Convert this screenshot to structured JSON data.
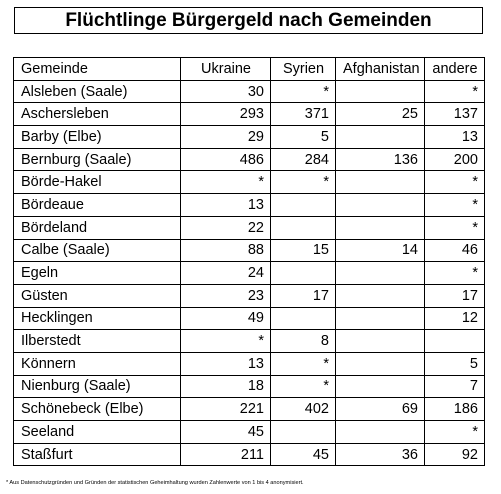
{
  "title": "Flüchtlinge Bürgergeld nach Gemeinden",
  "table": {
    "headers": [
      "Gemeinde",
      "Ukraine",
      "Syrien",
      "Afghanistan",
      "andere"
    ],
    "rows": [
      [
        "Alsleben (Saale)",
        "30",
        "*",
        "",
        "*"
      ],
      [
        "Aschersleben",
        "293",
        "371",
        "25",
        "137"
      ],
      [
        "Barby (Elbe)",
        "29",
        "5",
        "",
        "13"
      ],
      [
        "Bernburg (Saale)",
        "486",
        "284",
        "136",
        "200"
      ],
      [
        "Börde-Hakel",
        "*",
        "*",
        "",
        "*"
      ],
      [
        "Bördeaue",
        "13",
        "",
        "",
        "*"
      ],
      [
        "Bördeland",
        "22",
        "",
        "",
        "*"
      ],
      [
        "Calbe (Saale)",
        "88",
        "15",
        "14",
        "46"
      ],
      [
        "Egeln",
        "24",
        "",
        "",
        "*"
      ],
      [
        "Güsten",
        "23",
        "17",
        "",
        "17"
      ],
      [
        "Hecklingen",
        "49",
        "",
        "",
        "12"
      ],
      [
        "Ilberstedt",
        "*",
        "8",
        "",
        ""
      ],
      [
        "Könnern",
        "13",
        "*",
        "",
        "5"
      ],
      [
        "Nienburg (Saale)",
        "18",
        "*",
        "",
        "7"
      ],
      [
        "Schönebeck (Elbe)",
        "221",
        "402",
        "69",
        "186"
      ],
      [
        "Seeland",
        "45",
        "",
        "",
        "*"
      ],
      [
        "Staßfurt",
        "211",
        "45",
        "36",
        "92"
      ]
    ]
  },
  "footnote": "* Aus Datenschutzgründen und Gründen der statistischen Geheimhaltung wurden Zahlenwerte von 1 bis 4 anonymisiert."
}
